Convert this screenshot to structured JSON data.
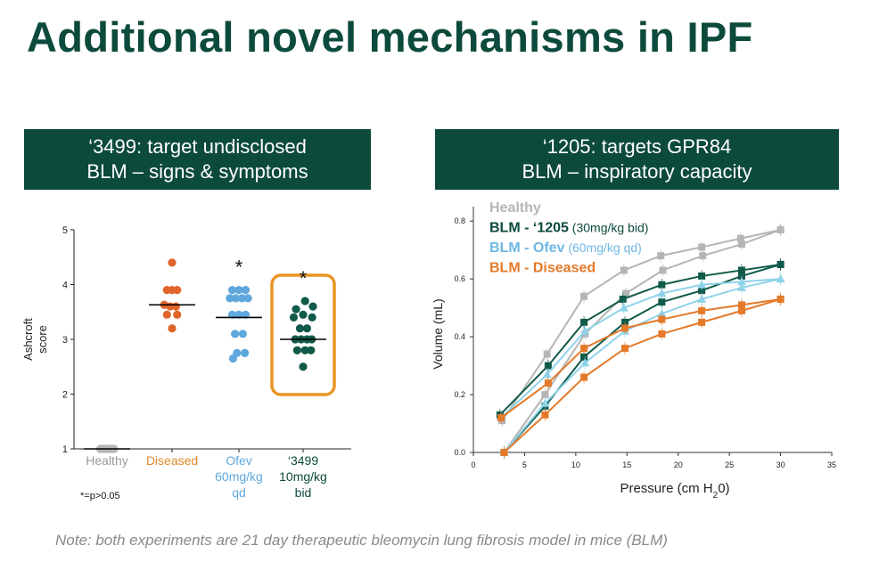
{
  "slide": {
    "title": "Additional novel mechanisms in IPF",
    "note": "Note: both experiments are 21 day therapeutic bleomycin lung fibrosis model in mice (BLM)"
  },
  "left_panel": {
    "header_line1": "‘3499: target undisclosed",
    "header_line2": "BLM – signs & symptoms"
  },
  "right_panel": {
    "header_line1": "‘1205: targets GPR84",
    "header_line2": "BLM – inspiratory capacity"
  },
  "colors": {
    "header_bg": "#0c4a3c",
    "healthy": "#b5b5b5",
    "diseased": "#e0652a",
    "ofev": "#5fa8dd",
    "cmpd_3499": "#0f5a48",
    "highlight_box": "#ea9524",
    "ofev_light": "#8fd3ea",
    "diseased_orange": "#e47a2a"
  },
  "chart_data": [
    {
      "type": "scatter",
      "title": "",
      "ylabel": "Ashcroft score",
      "ylim": [
        1,
        5
      ],
      "yticks": [
        1,
        2,
        3,
        4,
        5
      ],
      "footnote": "*=p>0.05",
      "highlighted_group": "‘3499 10mg/kg bid",
      "groups": [
        {
          "label_lines": [
            "Healthy"
          ],
          "color": "#b5b5b5",
          "label_color": "#9a9a9a",
          "significance": "",
          "median": 1.0,
          "points": [
            [
              -0.14,
              1.0
            ],
            [
              -0.07,
              1.0
            ],
            [
              0.0,
              1.0
            ],
            [
              0.07,
              1.0
            ],
            [
              0.14,
              1.0
            ],
            [
              -0.17,
              1.0
            ],
            [
              -0.1,
              1.0
            ],
            [
              -0.03,
              1.0
            ],
            [
              0.04,
              1.0
            ],
            [
              0.11,
              1.0
            ],
            [
              0.18,
              1.0
            ]
          ]
        },
        {
          "label_lines": [
            "Diseased"
          ],
          "color": "#e0652a",
          "label_color": "#e08a2a",
          "significance": "",
          "median": 3.63,
          "points": [
            [
              0.0,
              4.4
            ],
            [
              -0.13,
              3.9
            ],
            [
              0.0,
              3.9
            ],
            [
              0.13,
              3.9
            ],
            [
              -0.2,
              3.63
            ],
            [
              -0.05,
              3.6
            ],
            [
              0.1,
              3.6
            ],
            [
              -0.13,
              3.45
            ],
            [
              0.13,
              3.45
            ],
            [
              0.0,
              3.2
            ]
          ]
        },
        {
          "label_lines": [
            "Ofev",
            "60mg/kg",
            "qd"
          ],
          "color": "#5fa8dd",
          "label_color": "#5fa8dd",
          "significance": "*",
          "median": 3.4,
          "points": [
            [
              -0.17,
              3.9
            ],
            [
              0.0,
              3.9
            ],
            [
              0.17,
              3.9
            ],
            [
              -0.23,
              3.75
            ],
            [
              -0.08,
              3.75
            ],
            [
              0.08,
              3.75
            ],
            [
              0.23,
              3.75
            ],
            [
              -0.17,
              3.45
            ],
            [
              0.0,
              3.45
            ],
            [
              0.17,
              3.45
            ],
            [
              -0.1,
              3.1
            ],
            [
              0.1,
              3.1
            ],
            [
              -0.05,
              2.75
            ],
            [
              0.15,
              2.75
            ],
            [
              -0.15,
              2.65
            ]
          ]
        },
        {
          "label_lines": [
            "‘3499",
            "10mg/kg",
            "bid"
          ],
          "color": "#0f5a48",
          "label_color": "#0c4a3c",
          "significance": "*",
          "median": 3.0,
          "points": [
            [
              0.05,
              3.7
            ],
            [
              -0.18,
              3.55
            ],
            [
              0.25,
              3.6
            ],
            [
              0.0,
              3.45
            ],
            [
              -0.24,
              3.4
            ],
            [
              0.23,
              3.4
            ],
            [
              -0.08,
              3.2
            ],
            [
              0.1,
              3.2
            ],
            [
              -0.2,
              3.0
            ],
            [
              -0.05,
              3.0
            ],
            [
              0.1,
              3.0
            ],
            [
              0.22,
              3.0
            ],
            [
              -0.15,
              2.8
            ],
            [
              0.05,
              2.8
            ],
            [
              0.2,
              2.8
            ],
            [
              0.0,
              2.5
            ]
          ]
        }
      ]
    },
    {
      "type": "line",
      "title": "",
      "xlabel": "Pressure (cm H",
      "xlabel_sub": "2",
      "xlabel_end": "0)",
      "ylabel": "Volume (mL)",
      "xlim": [
        0,
        35
      ],
      "ylim": [
        0,
        0.85
      ],
      "xticks": [
        0,
        5,
        10,
        15,
        20,
        25,
        30,
        35
      ],
      "yticks": [
        0.0,
        0.2,
        0.4,
        0.6,
        0.8
      ],
      "legend": [
        {
          "label": "Healthy",
          "detail": "",
          "color": "#b5b5b5",
          "bold": true
        },
        {
          "label": "BLM - ‘1205",
          "detail": "(30mg/kg bid)",
          "color": "#0c4a3c",
          "bold": true
        },
        {
          "label": "BLM - Ofev",
          "detail": "(60mg/kg qd)",
          "color": "#6fb8e5",
          "bold": true
        },
        {
          "label": "BLM - Diseased",
          "detail": "",
          "color": "#e47a2a",
          "bold": true
        }
      ],
      "series": [
        {
          "name": "Healthy",
          "color": "#b5b5b5",
          "marker": "square",
          "x": [
            2.8,
            7.2,
            10.8,
            14.7,
            18.3,
            22.3,
            26.1,
            30.0
          ],
          "y": [
            0.11,
            0.34,
            0.54,
            0.63,
            0.68,
            0.71,
            0.74,
            0.77
          ]
        },
        {
          "name": "Healthy",
          "color": "#b5b5b5",
          "marker": "square",
          "x": [
            3.0,
            7.0,
            10.9,
            14.9,
            18.5,
            22.4,
            26.2,
            30.0
          ],
          "y": [
            0.0,
            0.2,
            0.41,
            0.55,
            0.63,
            0.68,
            0.72,
            0.77
          ]
        },
        {
          "name": "BLM - ‘1205",
          "color": "#0f5a48",
          "marker": "square",
          "x": [
            2.6,
            7.3,
            10.8,
            14.6,
            18.4,
            22.3,
            26.2,
            30.0
          ],
          "y": [
            0.13,
            0.3,
            0.45,
            0.53,
            0.58,
            0.61,
            0.63,
            0.65
          ]
        },
        {
          "name": "BLM - ‘1205",
          "color": "#0f5a48",
          "marker": "square",
          "x": [
            3.0,
            7.0,
            10.8,
            14.8,
            18.4,
            22.3,
            26.2,
            30.0
          ],
          "y": [
            0.0,
            0.16,
            0.33,
            0.45,
            0.52,
            0.56,
            0.61,
            0.65
          ]
        },
        {
          "name": "BLM - Ofev",
          "color": "#8fd3ea",
          "marker": "triangle",
          "x": [
            2.7,
            7.2,
            10.9,
            14.7,
            18.4,
            22.3,
            26.2,
            30.0
          ],
          "y": [
            0.12,
            0.27,
            0.42,
            0.5,
            0.55,
            0.58,
            0.59,
            0.6
          ]
        },
        {
          "name": "BLM - Ofev",
          "color": "#8fd3ea",
          "marker": "triangle",
          "x": [
            3.0,
            7.0,
            10.9,
            14.8,
            18.4,
            22.3,
            26.2,
            30.0
          ],
          "y": [
            0.0,
            0.17,
            0.31,
            0.42,
            0.48,
            0.53,
            0.57,
            0.6
          ]
        },
        {
          "name": "BLM - Diseased",
          "color": "#e47a2a",
          "marker": "square",
          "x": [
            2.7,
            7.3,
            10.8,
            14.8,
            18.4,
            22.3,
            26.2,
            30.0
          ],
          "y": [
            0.12,
            0.24,
            0.36,
            0.43,
            0.46,
            0.49,
            0.51,
            0.53
          ]
        },
        {
          "name": "BLM - Diseased",
          "color": "#e47a2a",
          "marker": "square",
          "x": [
            3.0,
            7.0,
            10.8,
            14.8,
            18.4,
            22.3,
            26.2,
            30.0
          ],
          "y": [
            0.0,
            0.13,
            0.26,
            0.36,
            0.41,
            0.45,
            0.49,
            0.53
          ]
        }
      ]
    }
  ]
}
